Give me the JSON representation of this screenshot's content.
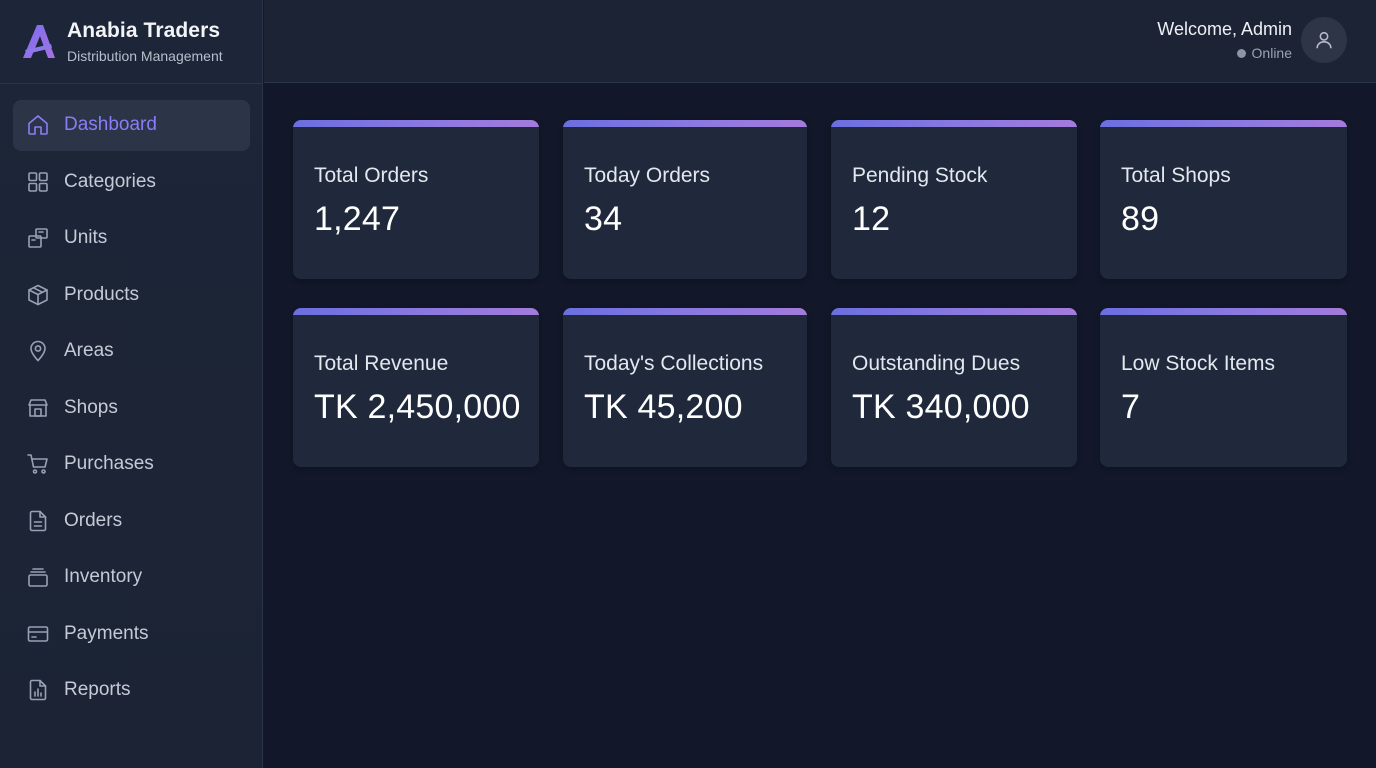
{
  "brand": {
    "name": "Anabia Traders",
    "subtitle": "Distribution Management",
    "logo_letter": "A"
  },
  "sidebar": {
    "items": [
      {
        "label": "Dashboard",
        "icon": "home-icon",
        "active": true
      },
      {
        "label": "Categories",
        "icon": "grid-icon",
        "active": false
      },
      {
        "label": "Units",
        "icon": "box-stack-icon",
        "active": false
      },
      {
        "label": "Products",
        "icon": "cube-icon",
        "active": false
      },
      {
        "label": "Areas",
        "icon": "map-pin-icon",
        "active": false
      },
      {
        "label": "Shops",
        "icon": "store-icon",
        "active": false
      },
      {
        "label": "Purchases",
        "icon": "cart-icon",
        "active": false
      },
      {
        "label": "Orders",
        "icon": "document-icon",
        "active": false
      },
      {
        "label": "Inventory",
        "icon": "layers-icon",
        "active": false
      },
      {
        "label": "Payments",
        "icon": "credit-card-icon",
        "active": false
      },
      {
        "label": "Reports",
        "icon": "report-icon",
        "active": false
      }
    ]
  },
  "header": {
    "welcome": "Welcome, Admin",
    "status": "Online",
    "avatar_icon": "user-icon"
  },
  "stats": [
    {
      "label": "Total Orders",
      "value": "1,247"
    },
    {
      "label": "Today Orders",
      "value": "34"
    },
    {
      "label": "Pending Stock",
      "value": "12"
    },
    {
      "label": "Total Shops",
      "value": "89"
    },
    {
      "label": "Total Revenue",
      "value": "TK 2,450,000"
    },
    {
      "label": "Today's Collections",
      "value": "TK 45,200"
    },
    {
      "label": "Outstanding Dues",
      "value": "TK 340,000"
    },
    {
      "label": "Low Stock Items",
      "value": "7"
    }
  ],
  "colors": {
    "accent": "#8b7cf6",
    "background": "#121829",
    "sidebar": "#1d2638",
    "card": "#1f293b",
    "gradient_start": "#6b6fe0",
    "gradient_end": "#a37bdc"
  }
}
